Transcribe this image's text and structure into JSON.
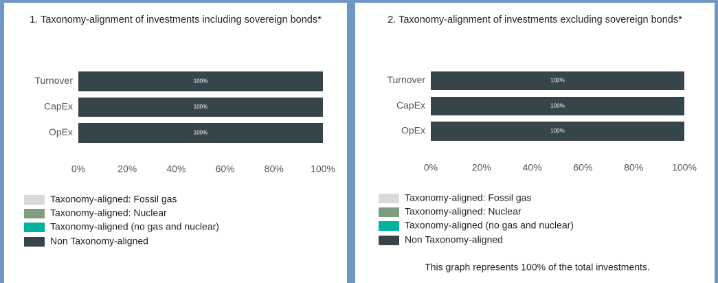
{
  "chart_data": [
    {
      "type": "bar",
      "orientation": "horizontal",
      "stacked": true,
      "title": "1. Taxonomy-alignment of investments including sovereign bonds*",
      "categories": [
        "Turnover",
        "CapEx",
        "OpEx"
      ],
      "series": [
        {
          "name": "Taxonomy-aligned: Fossil gas",
          "color": "#d9d9d9",
          "values": [
            0,
            0,
            0
          ]
        },
        {
          "name": "Taxonomy-aligned: Nuclear",
          "color": "#7f9c80",
          "values": [
            0,
            0,
            0
          ]
        },
        {
          "name": "Taxonomy-aligned (no gas and nuclear)",
          "color": "#00b2a0",
          "values": [
            0,
            0,
            0
          ]
        },
        {
          "name": "Non Taxonomy-aligned",
          "color": "#36454a",
          "values": [
            100,
            100,
            100
          ],
          "value_labels": [
            "100%",
            "100%",
            "100%"
          ]
        }
      ],
      "xlim": [
        0,
        100
      ],
      "xticks": [
        {
          "value": 0,
          "label": "0%"
        },
        {
          "value": 20,
          "label": "20%"
        },
        {
          "value": 40,
          "label": "40%"
        },
        {
          "value": 60,
          "label": "60%"
        },
        {
          "value": 80,
          "label": "80%"
        },
        {
          "value": 100,
          "label": "100%"
        }
      ]
    },
    {
      "type": "bar",
      "orientation": "horizontal",
      "stacked": true,
      "title": "2. Taxonomy-alignment of investments excluding sovereign bonds*",
      "categories": [
        "Turnover",
        "CapEx",
        "OpEx"
      ],
      "series": [
        {
          "name": "Taxonomy-aligned: Fossil gas",
          "color": "#d9d9d9",
          "values": [
            0,
            0,
            0
          ]
        },
        {
          "name": "Taxonomy-aligned: Nuclear",
          "color": "#7f9c80",
          "values": [
            0,
            0,
            0
          ]
        },
        {
          "name": "Taxonomy-aligned (no gas and nuclear)",
          "color": "#00b2a0",
          "values": [
            0,
            0,
            0
          ]
        },
        {
          "name": "Non Taxonomy-aligned",
          "color": "#36454a",
          "values": [
            100,
            100,
            100
          ],
          "value_labels": [
            "100%",
            "100%",
            "100%"
          ]
        }
      ],
      "xlim": [
        0,
        100
      ],
      "xticks": [
        {
          "value": 0,
          "label": "0%"
        },
        {
          "value": 20,
          "label": "20%"
        },
        {
          "value": 40,
          "label": "40%"
        },
        {
          "value": 60,
          "label": "60%"
        },
        {
          "value": 80,
          "label": "80%"
        },
        {
          "value": 100,
          "label": "100%"
        }
      ],
      "note": "This graph represents 100% of the total investments."
    }
  ]
}
